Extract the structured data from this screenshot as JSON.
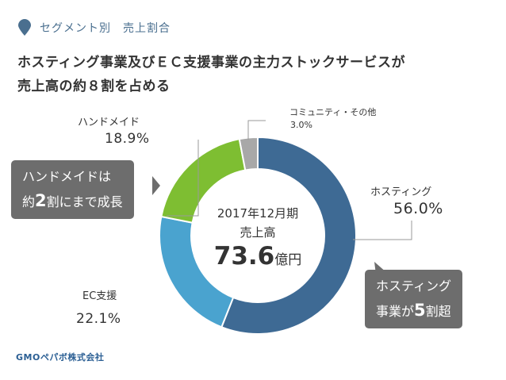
{
  "header": {
    "subtitle": "セグメント別　売上割合",
    "headline_line1": "ホスティング事業及びＥＣ支援事業の主力ストックサービスが",
    "headline_line2": "売上高の約８割を占める"
  },
  "center": {
    "period": "2017年12月期",
    "label": "売上高",
    "amount": "73.6",
    "unit": "億円"
  },
  "callouts": {
    "handmade_line1": "ハンドメイドは",
    "handmade_line2_pre": "約",
    "handmade_line2_num": "2",
    "handmade_line2_post": "割にまで成長",
    "hosting_line1": "ホスティング",
    "hosting_line2_pre": "事業が",
    "hosting_line2_num": "5",
    "hosting_line2_post": "割超"
  },
  "logo": {
    "text": "GMOペパボ株式会社"
  },
  "colors": {
    "hosting": "#3e6a94",
    "ec": "#4aa3cf",
    "handmade": "#7ebe32",
    "community": "#a8a8a8",
    "accent": "#4a6f8f"
  },
  "chart_data": {
    "type": "pie",
    "title": "セグメント別　売上割合",
    "center_text": "2017年12月期 売上高 73.6億円",
    "slices": [
      {
        "name": "ホスティング",
        "value": 56.0,
        "value_label": "56.0%",
        "color": "#3e6a94"
      },
      {
        "name": "EC支援",
        "value": 22.1,
        "value_label": "22.1%",
        "color": "#4aa3cf"
      },
      {
        "name": "ハンドメイド",
        "value": 18.9,
        "value_label": "18.9%",
        "color": "#7ebe32"
      },
      {
        "name": "コミュニティ・その他",
        "value": 3.0,
        "value_label": "3.0%",
        "color": "#a8a8a8"
      }
    ]
  }
}
